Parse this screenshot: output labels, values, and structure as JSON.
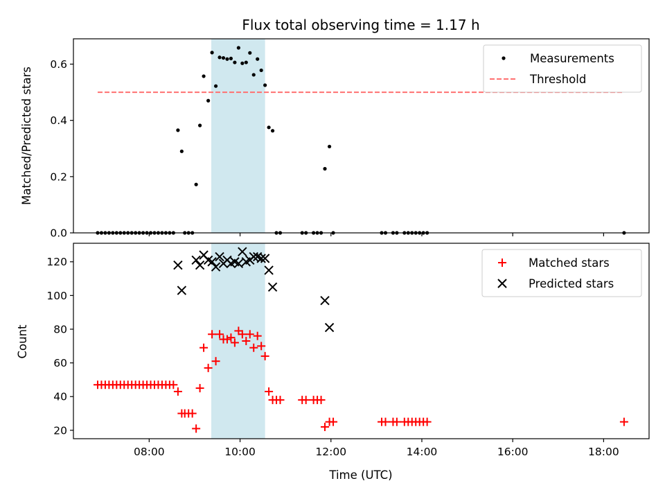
{
  "chart_data": [
    {
      "type": "scatter",
      "title": "Flux total observing time = 1.17 h",
      "ylabel": "Matched/Predicted stars",
      "xlabel": "",
      "xlim": [
        "06:20",
        "19:00"
      ],
      "ylim": [
        0,
        0.69
      ],
      "yticks": [
        0.0,
        0.2,
        0.4,
        0.6
      ],
      "ytick_labels": [
        "0.0",
        "0.2",
        "0.4",
        "0.6"
      ],
      "shaded_span": [
        "09:22",
        "10:33"
      ],
      "shaded_color": "#d0e8ef",
      "legend": {
        "position": "upper right"
      },
      "series": [
        {
          "name": "Measurements",
          "marker": "dot",
          "color": "#000000",
          "points": [
            [
              "06:52",
              0
            ],
            [
              "06:57",
              0
            ],
            [
              "07:02",
              0
            ],
            [
              "07:07",
              0
            ],
            [
              "07:12",
              0
            ],
            [
              "07:17",
              0
            ],
            [
              "07:22",
              0
            ],
            [
              "07:27",
              0
            ],
            [
              "07:32",
              0
            ],
            [
              "07:37",
              0
            ],
            [
              "07:42",
              0
            ],
            [
              "07:47",
              0
            ],
            [
              "07:52",
              0
            ],
            [
              "07:57",
              0
            ],
            [
              "08:02",
              0
            ],
            [
              "08:07",
              0
            ],
            [
              "08:12",
              0
            ],
            [
              "08:17",
              0
            ],
            [
              "08:22",
              0
            ],
            [
              "08:27",
              0
            ],
            [
              "08:32",
              0
            ],
            [
              "08:38",
              0.365
            ],
            [
              "08:43",
              0.29
            ],
            [
              "08:47",
              0
            ],
            [
              "08:52",
              0
            ],
            [
              "08:57",
              0
            ],
            [
              "09:02",
              0.172
            ],
            [
              "09:07",
              0.382
            ],
            [
              "09:12",
              0.557
            ],
            [
              "09:18",
              0.47
            ],
            [
              "09:23",
              0.641
            ],
            [
              "09:28",
              0.522
            ],
            [
              "09:33",
              0.624
            ],
            [
              "09:38",
              0.622
            ],
            [
              "09:43",
              0.618
            ],
            [
              "09:48",
              0.62
            ],
            [
              "09:53",
              0.606
            ],
            [
              "09:58",
              0.658
            ],
            [
              "10:03",
              0.603
            ],
            [
              "10:08",
              0.606
            ],
            [
              "10:13",
              0.64
            ],
            [
              "10:18",
              0.562
            ],
            [
              "10:23",
              0.618
            ],
            [
              "10:28",
              0.578
            ],
            [
              "10:33",
              0.525
            ],
            [
              "10:38",
              0.375
            ],
            [
              "10:43",
              0.363
            ],
            [
              "10:48",
              0
            ],
            [
              "10:53",
              0
            ],
            [
              "11:22",
              0
            ],
            [
              "11:27",
              0
            ],
            [
              "11:37",
              0
            ],
            [
              "11:42",
              0
            ],
            [
              "11:47",
              0
            ],
            [
              "11:52",
              0.228
            ],
            [
              "11:58",
              0.307
            ],
            [
              "12:03",
              0
            ],
            [
              "13:07",
              0
            ],
            [
              "13:12",
              0
            ],
            [
              "13:22",
              0
            ],
            [
              "13:27",
              0
            ],
            [
              "13:37",
              0
            ],
            [
              "13:42",
              0
            ],
            [
              "13:47",
              0
            ],
            [
              "13:52",
              0
            ],
            [
              "13:57",
              0
            ],
            [
              "14:02",
              0
            ],
            [
              "14:07",
              0
            ],
            [
              "18:27",
              0
            ]
          ]
        },
        {
          "name": "Threshold",
          "marker": "dashed-line",
          "color": "#ff7070",
          "value": 0.5,
          "x_range": [
            "06:52",
            "18:27"
          ]
        }
      ]
    },
    {
      "type": "scatter",
      "title": "",
      "ylabel": "Count",
      "xlabel": "Time (UTC)",
      "xlim": [
        "06:20",
        "19:00"
      ],
      "ylim": [
        15,
        131
      ],
      "yticks": [
        20,
        40,
        60,
        80,
        100,
        120
      ],
      "ytick_labels": [
        "20",
        "40",
        "60",
        "80",
        "100",
        "120"
      ],
      "xticks": [
        "08:00",
        "10:00",
        "12:00",
        "14:00",
        "16:00",
        "18:00"
      ],
      "xtick_labels": [
        "08:00",
        "10:00",
        "12:00",
        "14:00",
        "16:00",
        "18:00"
      ],
      "shaded_span": [
        "09:22",
        "10:33"
      ],
      "shaded_color": "#d0e8ef",
      "legend": {
        "position": "upper right"
      },
      "series": [
        {
          "name": "Matched stars",
          "marker": "plus",
          "color": "#ff0000",
          "points": [
            [
              "06:52",
              47
            ],
            [
              "06:57",
              47
            ],
            [
              "07:02",
              47
            ],
            [
              "07:07",
              47
            ],
            [
              "07:12",
              47
            ],
            [
              "07:17",
              47
            ],
            [
              "07:22",
              47
            ],
            [
              "07:27",
              47
            ],
            [
              "07:32",
              47
            ],
            [
              "07:37",
              47
            ],
            [
              "07:42",
              47
            ],
            [
              "07:47",
              47
            ],
            [
              "07:52",
              47
            ],
            [
              "07:57",
              47
            ],
            [
              "08:02",
              47
            ],
            [
              "08:07",
              47
            ],
            [
              "08:12",
              47
            ],
            [
              "08:17",
              47
            ],
            [
              "08:22",
              47
            ],
            [
              "08:27",
              47
            ],
            [
              "08:32",
              47
            ],
            [
              "08:38",
              43
            ],
            [
              "08:43",
              30
            ],
            [
              "08:47",
              30
            ],
            [
              "08:52",
              30
            ],
            [
              "08:57",
              30
            ],
            [
              "09:02",
              21
            ],
            [
              "09:07",
              45
            ],
            [
              "09:12",
              69
            ],
            [
              "09:18",
              57
            ],
            [
              "09:23",
              77
            ],
            [
              "09:28",
              61
            ],
            [
              "09:33",
              77
            ],
            [
              "09:38",
              74
            ],
            [
              "09:43",
              74
            ],
            [
              "09:48",
              75
            ],
            [
              "09:53",
              72
            ],
            [
              "09:58",
              79
            ],
            [
              "10:03",
              77
            ],
            [
              "10:08",
              73
            ],
            [
              "10:13",
              77
            ],
            [
              "10:18",
              69
            ],
            [
              "10:23",
              76
            ],
            [
              "10:28",
              70
            ],
            [
              "10:33",
              64
            ],
            [
              "10:38",
              43
            ],
            [
              "10:43",
              38
            ],
            [
              "10:48",
              38
            ],
            [
              "10:53",
              38
            ],
            [
              "11:22",
              38
            ],
            [
              "11:27",
              38
            ],
            [
              "11:37",
              38
            ],
            [
              "11:42",
              38
            ],
            [
              "11:47",
              38
            ],
            [
              "11:52",
              22
            ],
            [
              "11:58",
              25
            ],
            [
              "12:03",
              25
            ],
            [
              "13:07",
              25
            ],
            [
              "13:12",
              25
            ],
            [
              "13:22",
              25
            ],
            [
              "13:27",
              25
            ],
            [
              "13:37",
              25
            ],
            [
              "13:42",
              25
            ],
            [
              "13:47",
              25
            ],
            [
              "13:52",
              25
            ],
            [
              "13:57",
              25
            ],
            [
              "14:02",
              25
            ],
            [
              "14:07",
              25
            ],
            [
              "18:27",
              25
            ]
          ]
        },
        {
          "name": "Predicted stars",
          "marker": "x",
          "color": "#000000",
          "points": [
            [
              "08:38",
              118
            ],
            [
              "08:43",
              103
            ],
            [
              "09:02",
              121
            ],
            [
              "09:07",
              118
            ],
            [
              "09:12",
              124
            ],
            [
              "09:18",
              121
            ],
            [
              "09:23",
              120
            ],
            [
              "09:28",
              117
            ],
            [
              "09:33",
              123
            ],
            [
              "09:38",
              119
            ],
            [
              "09:43",
              121
            ],
            [
              "09:48",
              119
            ],
            [
              "09:53",
              120
            ],
            [
              "09:58",
              119
            ],
            [
              "10:03",
              126
            ],
            [
              "10:08",
              120
            ],
            [
              "10:13",
              121
            ],
            [
              "10:18",
              123
            ],
            [
              "10:23",
              123
            ],
            [
              "10:28",
              122
            ],
            [
              "10:33",
              122
            ],
            [
              "10:38",
              115
            ],
            [
              "10:43",
              105
            ],
            [
              "11:52",
              97
            ],
            [
              "11:58",
              81
            ]
          ]
        }
      ]
    }
  ]
}
